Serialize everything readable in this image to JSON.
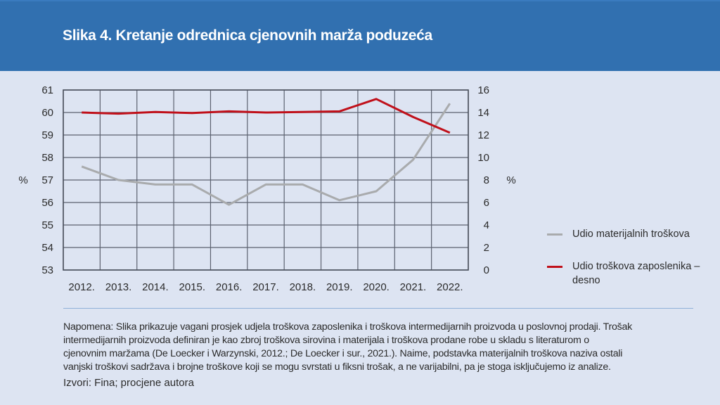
{
  "header": {
    "title": "Slika 4. Kretanje odrednica cjenovnih marža poduzeća",
    "background_color": "#3170b0"
  },
  "chart_data": {
    "type": "line",
    "title": "Slika 4. Kretanje odrednica cjenovnih marža poduzeća",
    "categories": [
      "2012.",
      "2013.",
      "2014.",
      "2015.",
      "2016.",
      "2017.",
      "2018.",
      "2019.",
      "2020.",
      "2021.",
      "2022."
    ],
    "series": [
      {
        "name": "Udio materijalnih troškova",
        "axis": "left",
        "color": "#a9abad",
        "values": [
          57.6,
          57.0,
          56.8,
          56.8,
          55.9,
          56.8,
          56.8,
          56.1,
          56.5,
          57.9,
          60.4
        ]
      },
      {
        "name": "Udio troškova zaposlenika – desno",
        "axis": "right",
        "color": "#c0101a",
        "values": [
          14.0,
          13.9,
          14.05,
          13.95,
          14.1,
          14.0,
          14.05,
          14.1,
          15.2,
          13.6,
          12.2
        ]
      }
    ],
    "y_left": {
      "label": "%",
      "ylim": [
        53,
        61
      ],
      "ticks": [
        "53",
        "54",
        "55",
        "56",
        "57",
        "58",
        "59",
        "60",
        "61"
      ]
    },
    "y_right": {
      "label": "%",
      "ylim": [
        0,
        16
      ],
      "ticks": [
        "0",
        "2",
        "4",
        "6",
        "8",
        "10",
        "12",
        "14",
        "16"
      ]
    },
    "xlabel": "",
    "grid": true,
    "legend_position": "right"
  },
  "legend": {
    "items": [
      {
        "label": "Udio materijalnih troškova",
        "color": "#a9abad"
      },
      {
        "label": "Udio troškova zaposlenika – desno",
        "color": "#c0101a"
      }
    ]
  },
  "footer": {
    "note": "Napomena: Slika prikazuje vagani prosjek udjela troškova zaposlenika i troškova intermedijarnih proizvoda u poslovnoj prodaji. Trošak intermedijarnih proizvoda  definiran je kao zbroj troškova sirovina i materijala i troškova prodane robe u skladu s literaturom o cjenovnim maržama (De Loecker i Warzynski, 2012.; De Loecker i sur., 2021.). Naime, podstavka materijalnih troškova naziva ostali vanjski troškovi sadržava i brojne troškove koji se mogu svrstati u fiksni trošak, a ne varijabilni, pa je stoga isključujemo iz analize.",
    "note_lines": [
      "Napomena: Slika prikazuje vagani prosjek udjela troškova zaposlenika i troškova intermedijarnih proizvoda u poslovnoj prodaji. Trošak",
      "intermedijarnih proizvoda  definiran je kao zbroj troškova sirovina i materijala i troškova prodane robe u skladu s literaturom o",
      "cjenovnim maržama (De Loecker i Warzynski, 2012.; De Loecker i sur., 2021.). Naime, podstavka materijalnih troškova naziva ostali",
      "vanjski troškovi sadržava i brojne troškove koji se mogu svrstati u fiksni trošak, a ne varijabilni, pa je stoga isključujemo iz analize."
    ],
    "sources": "Izvori: Fina; procjene autora"
  }
}
